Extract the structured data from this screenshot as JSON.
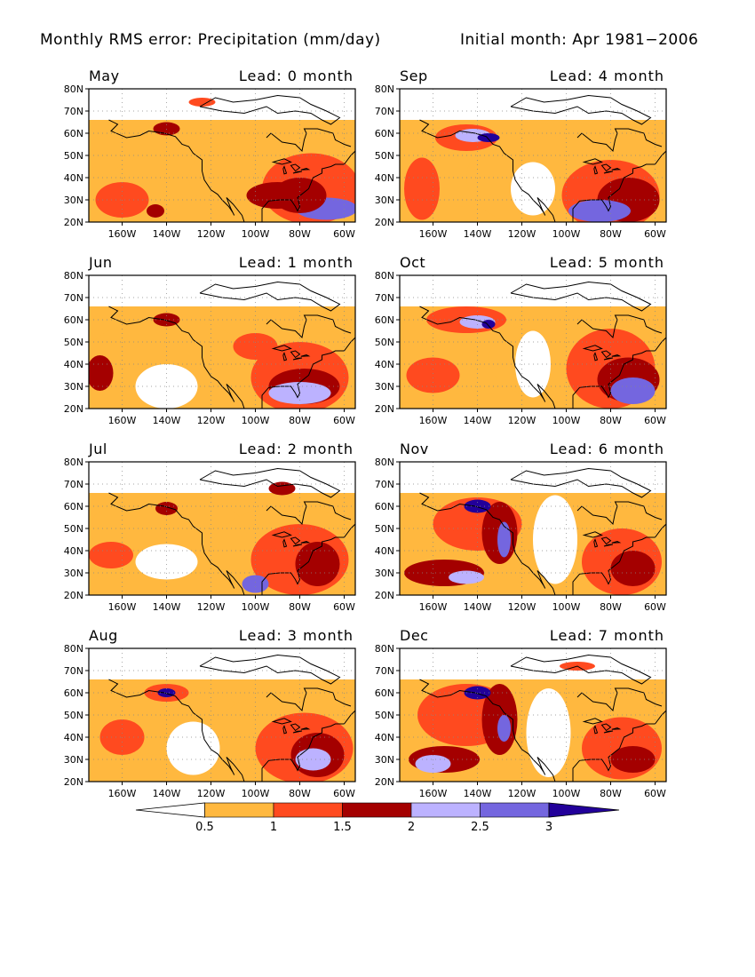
{
  "title_left": "Monthly RMS error: Precipitation (mm/day)",
  "title_right": "Initial month: Apr 1981−2006",
  "lat_ticks": [
    "80N",
    "70N",
    "60N",
    "50N",
    "40N",
    "30N",
    "20N"
  ],
  "lon_ticks": [
    "160W",
    "140W",
    "120W",
    "100W",
    "80W",
    "60W"
  ],
  "panels": [
    {
      "month": "May",
      "lead": "Lead: 0 month"
    },
    {
      "month": "Sep",
      "lead": "Lead: 4 month"
    },
    {
      "month": "Jun",
      "lead": "Lead: 1 month"
    },
    {
      "month": "Oct",
      "lead": "Lead: 5 month"
    },
    {
      "month": "Jul",
      "lead": "Lead: 2 month"
    },
    {
      "month": "Nov",
      "lead": "Lead: 6 month"
    },
    {
      "month": "Aug",
      "lead": "Lead: 3 month"
    },
    {
      "month": "Dec",
      "lead": "Lead: 7 month"
    }
  ],
  "colorbar": {
    "labels": [
      "0.5",
      "1",
      "1.5",
      "2",
      "2.5",
      "3"
    ],
    "colors": [
      "#ffffff",
      "#ffb83f",
      "#ff4a1f",
      "#a40000",
      "#bcb2ff",
      "#7466df",
      "#22009a"
    ]
  }
}
